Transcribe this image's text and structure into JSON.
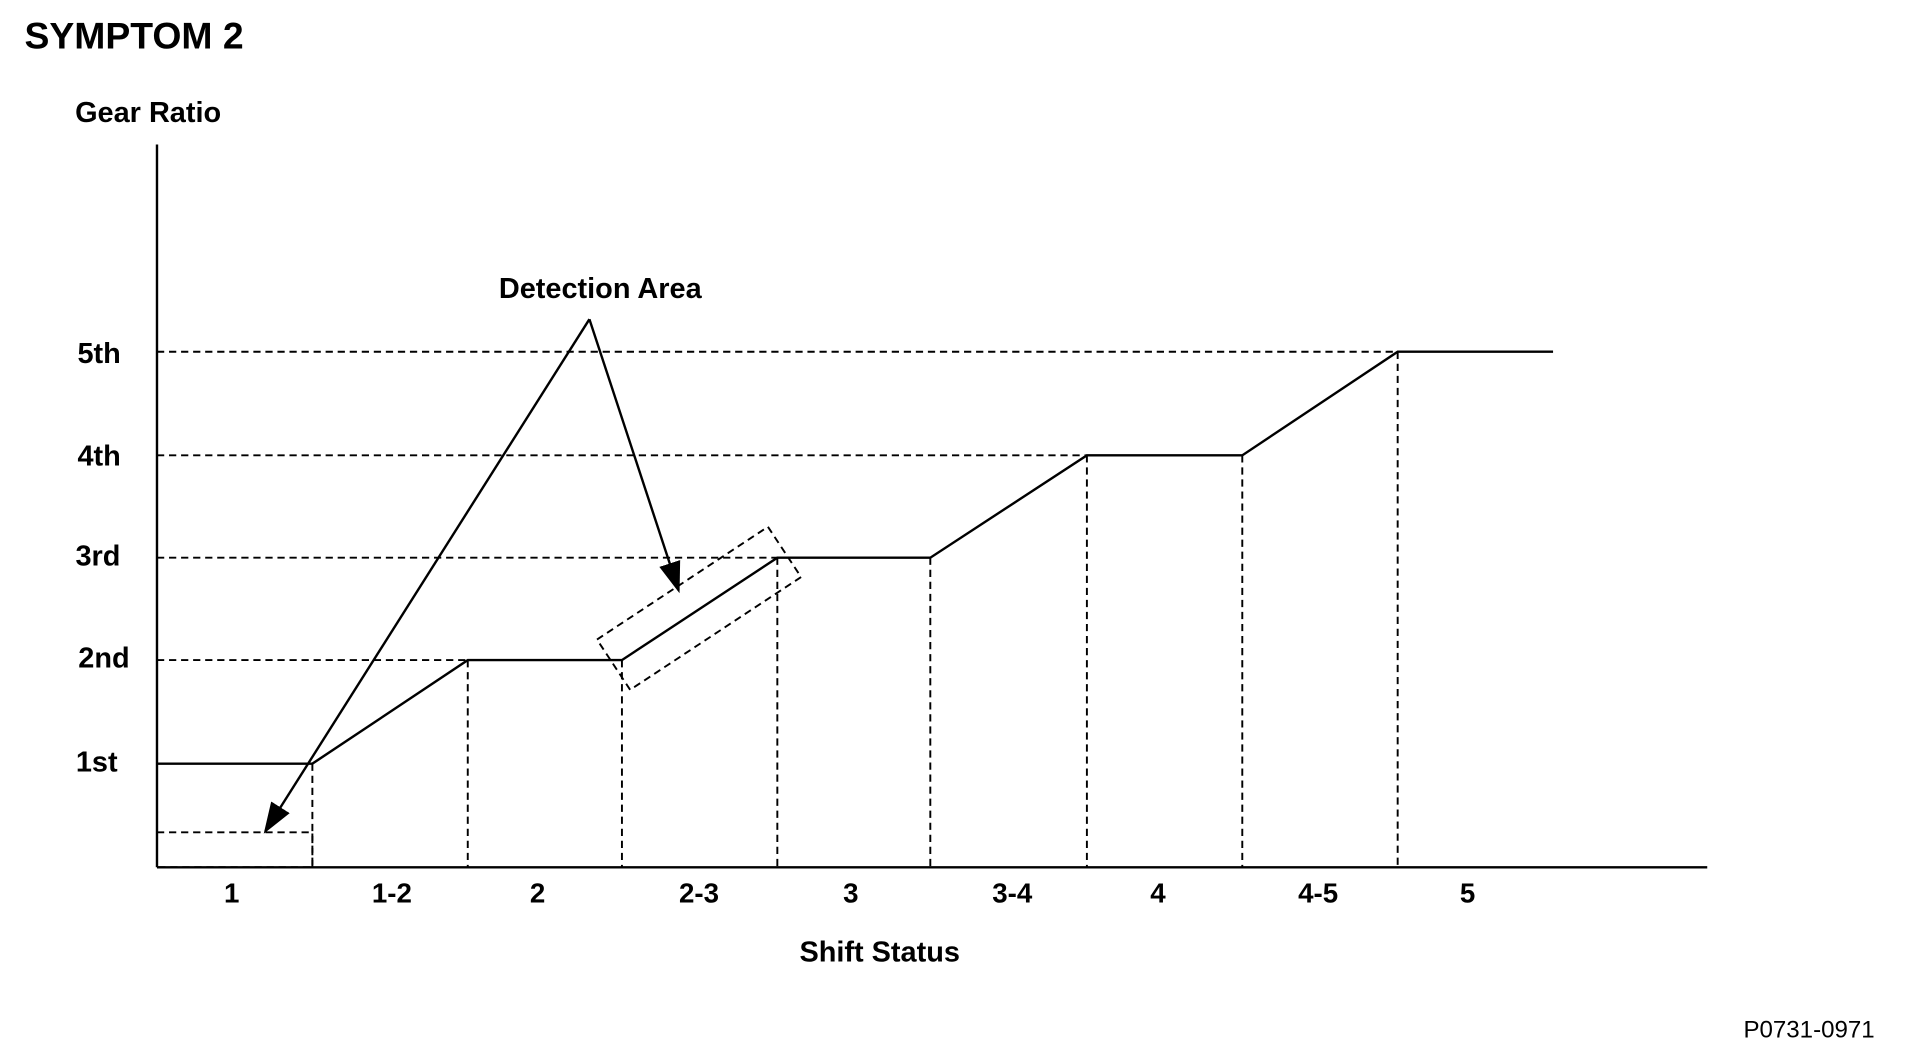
{
  "title": "SYMPTOM 2",
  "y_axis": {
    "label": "Gear Ratio",
    "levels": [
      "1st",
      "2nd",
      "3rd",
      "4th",
      "5th"
    ]
  },
  "x_axis": {
    "label": "Shift Status",
    "categories": [
      "1",
      "1-2",
      "2",
      "2-3",
      "3",
      "3-4",
      "4",
      "4-5",
      "5"
    ]
  },
  "annotation": "Detection Area",
  "figure_id": "P0731-0971"
}
